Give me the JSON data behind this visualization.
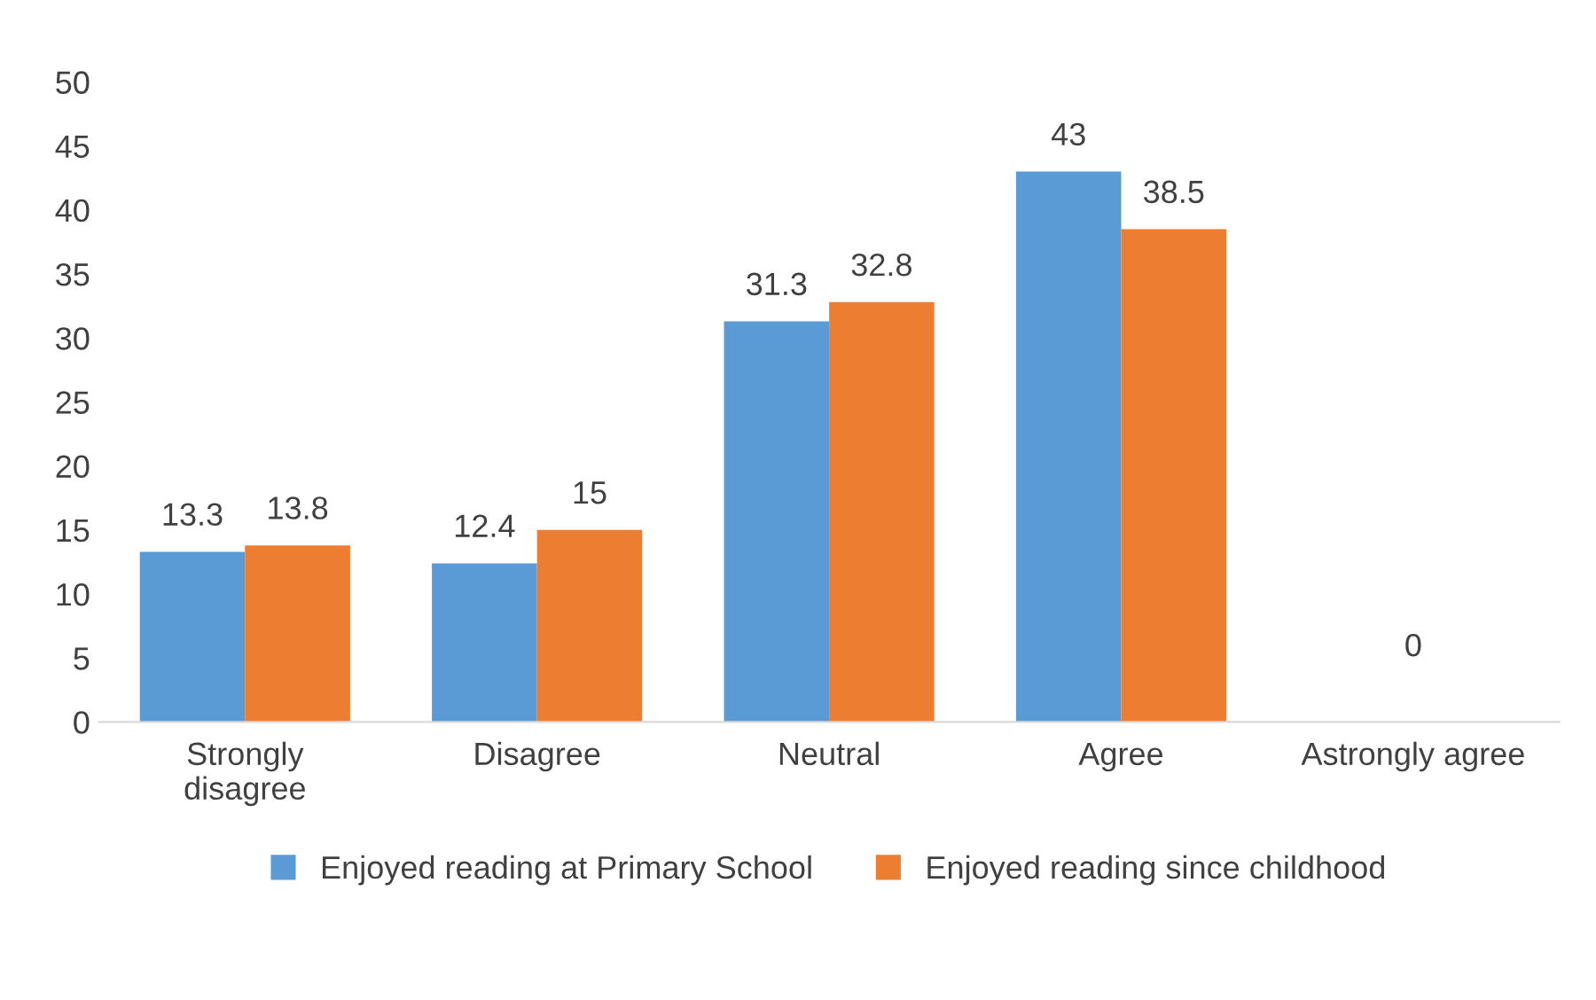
{
  "chart_data": {
    "type": "bar",
    "categories": [
      "Strongly\ndisagree",
      "Disagree",
      "Neutral",
      "Agree",
      "Astrongly agree"
    ],
    "series": [
      {
        "name": "Enjoyed reading at Primary School",
        "color": "#5b9bd5",
        "values": [
          13.3,
          12.4,
          31.3,
          43,
          null
        ],
        "value_labels": [
          "13.3",
          "12.4",
          "31.3",
          "43",
          null
        ]
      },
      {
        "name": "Enjoyed reading since childhood",
        "color": "#ed7d31",
        "values": [
          13.8,
          15,
          32.8,
          38.5,
          0
        ],
        "value_labels": [
          "13.8",
          "15",
          "32.8",
          "38.5",
          null
        ]
      }
    ],
    "annotations": [
      {
        "text": "0",
        "x": "Astrongly agree",
        "y": 0
      }
    ],
    "ylim": [
      0,
      50
    ],
    "yticks": [
      0,
      5,
      10,
      15,
      20,
      25,
      30,
      35,
      40,
      45,
      50
    ],
    "grid": false,
    "legend": "bottom"
  }
}
